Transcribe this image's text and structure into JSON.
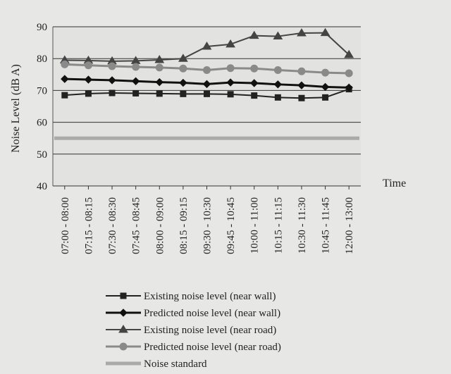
{
  "chart_data": {
    "type": "line",
    "title": "",
    "xlabel": "Time",
    "ylabel": "Noise Level (dB A)",
    "ylim": [
      40,
      90
    ],
    "yticks": [
      40,
      50,
      60,
      70,
      80,
      90
    ],
    "grid": true,
    "legend_position": "bottom",
    "categories": [
      "07:00 - 08:00",
      "07:15 - 08:15",
      "07:30 - 08:30",
      "07:45 - 08:45",
      "08:00 - 09:00",
      "08:15 - 09:15",
      "09:30 - 10:30",
      "09:45 - 10:45",
      "10:00 - 11:00",
      "10:15 - 11:15",
      "10:30 - 11:30",
      "10:45 - 11:45",
      "12:00 - 13:00"
    ],
    "series": [
      {
        "name": "Existing noise level (near wall)",
        "marker": "square",
        "color": "#222222",
        "width": 2,
        "values": [
          68.5,
          69,
          69.2,
          69.1,
          69,
          68.9,
          68.9,
          68.8,
          68.4,
          67.8,
          67.6,
          67.8,
          70.4
        ]
      },
      {
        "name": "Predicted noise level (near wall)",
        "marker": "diamond",
        "color": "#111111",
        "width": 3,
        "values": [
          73.6,
          73.4,
          73.2,
          72.9,
          72.6,
          72.4,
          72.0,
          72.5,
          72.3,
          71.9,
          71.6,
          71.1,
          70.9
        ]
      },
      {
        "name": "Existing noise level (near road)",
        "marker": "triangle",
        "color": "#444444",
        "width": 2,
        "values": [
          79.5,
          79.4,
          79.2,
          79.3,
          79.6,
          80.0,
          83.8,
          84.5,
          87.2,
          87.0,
          88.0,
          88.1,
          81.2
        ]
      },
      {
        "name": "Predicted noise level (near road)",
        "marker": "circle",
        "color": "#8a8a8a",
        "width": 3,
        "values": [
          78.2,
          77.9,
          77.6,
          77.4,
          77.2,
          76.9,
          76.4,
          77.0,
          76.9,
          76.4,
          76.0,
          75.6,
          75.4
        ]
      },
      {
        "name": "Noise standard",
        "marker": "none",
        "color": "#aaaaaa",
        "width": 5,
        "values": [
          55,
          55,
          55,
          55,
          55,
          55,
          55,
          55,
          55,
          55,
          55,
          55,
          55
        ]
      }
    ]
  }
}
